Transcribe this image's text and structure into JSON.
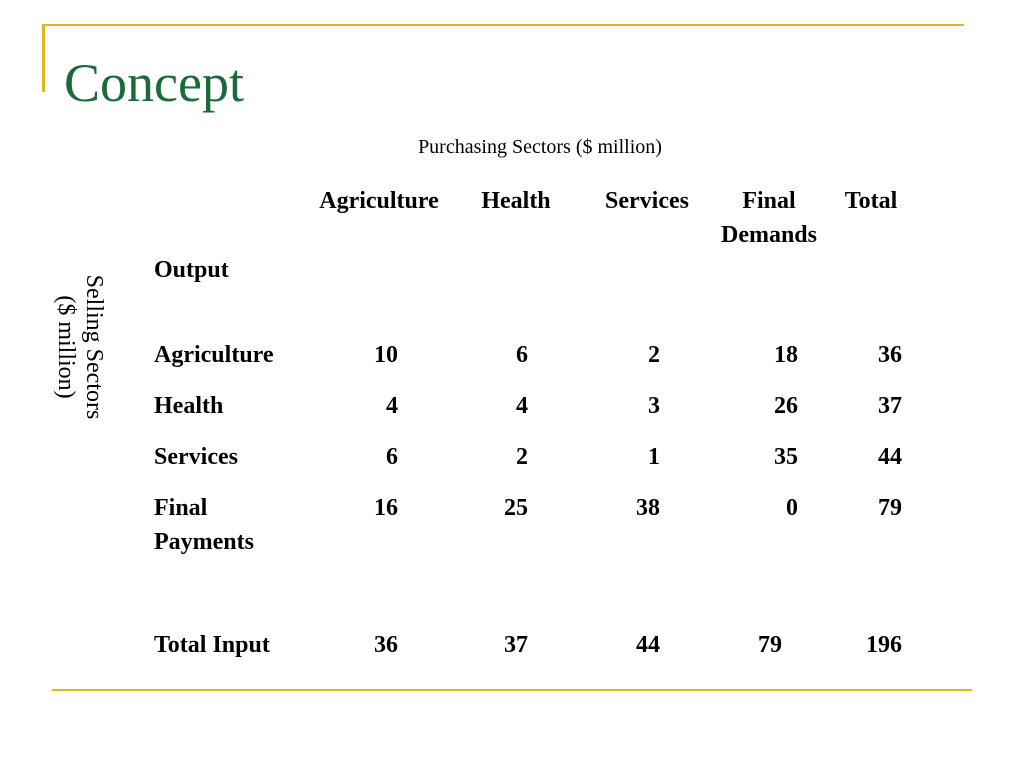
{
  "slide": {
    "title": "Concept"
  },
  "table": {
    "caption": "Purchasing Sectors ($ million)",
    "side_label": [
      "Selling Sectors",
      "($ million)"
    ],
    "corner_label": "Output",
    "columns": [
      "Agriculture",
      "Health",
      "Services",
      "Final Demands",
      "Total"
    ],
    "rows": [
      {
        "label": "Agriculture",
        "values": [
          "10",
          "6",
          "2",
          "18",
          "36"
        ]
      },
      {
        "label": "Health",
        "values": [
          "4",
          "4",
          "3",
          "26",
          "37"
        ]
      },
      {
        "label": "Services",
        "values": [
          "6",
          "2",
          "1",
          "35",
          "44"
        ]
      },
      {
        "label": "Final Payments",
        "values": [
          "16",
          "25",
          "38",
          "0",
          "79"
        ]
      },
      {
        "label": "Total Input",
        "values": [
          "36",
          "37",
          "44",
          "79",
          "196"
        ]
      }
    ]
  },
  "colors": {
    "title": "#1b6b3a",
    "frame": "#e6b422"
  }
}
